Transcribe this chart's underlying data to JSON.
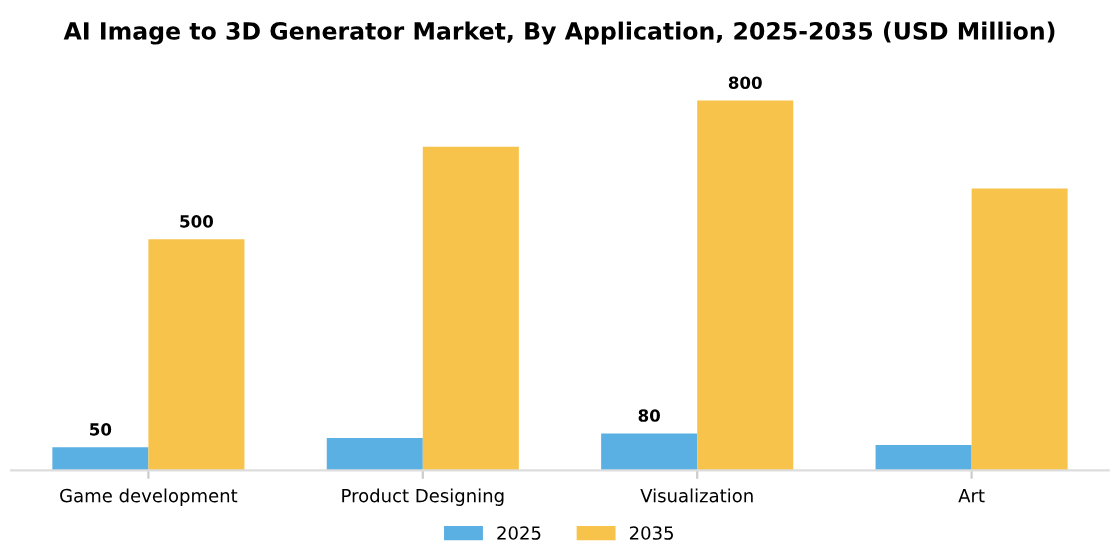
{
  "chart_data": {
    "type": "bar",
    "title": "AI Image to 3D Generator Market, By Application, 2025-2035 (USD Million)",
    "categories": [
      "Game development",
      "Product Designing",
      "Visualization",
      "Art"
    ],
    "series": [
      {
        "name": "2025",
        "color": "#5aafe3",
        "values": [
          50,
          70,
          80,
          55
        ],
        "value_labels": [
          "50",
          null,
          "80",
          null
        ]
      },
      {
        "name": "2035",
        "color": "#f8c34a",
        "values": [
          500,
          700,
          800,
          610
        ],
        "value_labels": [
          "500",
          null,
          "800",
          null
        ]
      }
    ],
    "legend": "bottom",
    "grid": false,
    "tick_labels": "x"
  }
}
